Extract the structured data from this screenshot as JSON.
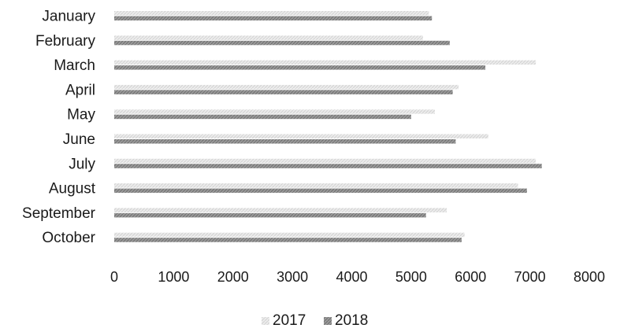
{
  "chart_data": {
    "type": "bar",
    "orientation": "horizontal",
    "categories": [
      "January",
      "February",
      "March",
      "April",
      "May",
      "June",
      "July",
      "August",
      "September",
      "October"
    ],
    "series": [
      {
        "name": "2017",
        "values": [
          5300,
          5200,
          7100,
          5800,
          5400,
          6300,
          7100,
          6800,
          5600,
          5900
        ],
        "color": "#e2e2e2"
      },
      {
        "name": "2018",
        "values": [
          5350,
          5650,
          6250,
          5700,
          5000,
          5750,
          7200,
          6950,
          5250,
          5850
        ],
        "color": "#8f8f8f"
      }
    ],
    "xticks": [
      "0",
      "1000",
      "2000",
      "3000",
      "4000",
      "5000",
      "6000",
      "7000",
      "8000"
    ],
    "xlim": [
      0,
      8000
    ],
    "grid": false,
    "legend_position": "bottom"
  }
}
